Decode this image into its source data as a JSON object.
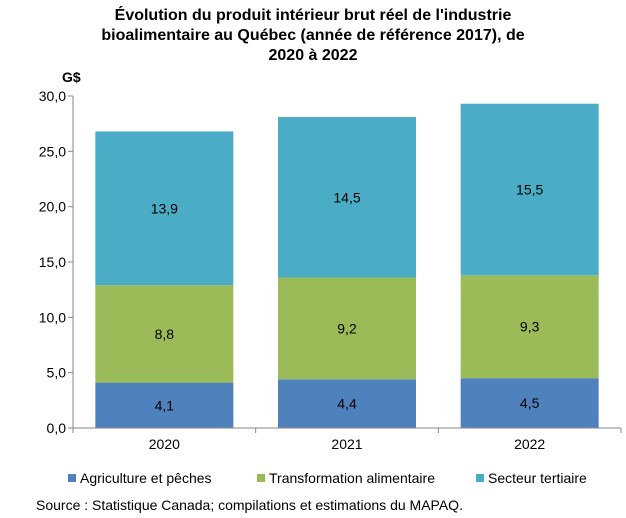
{
  "chart_data": {
    "type": "bar",
    "stacked": true,
    "title_lines": [
      "Évolution du produit intérieur brut réel de l'industrie",
      "bioalimentaire au Québec (année de référence 2017), de",
      "2020 à 2022"
    ],
    "ylabel": "G$",
    "ylim": [
      0,
      30
    ],
    "yticks": [
      "0,0",
      "5,0",
      "10,0",
      "15,0",
      "20,0",
      "25,0",
      "30,0"
    ],
    "categories": [
      "2020",
      "2021",
      "2022"
    ],
    "series": [
      {
        "name": "Agriculture et pêches",
        "color": "#4f81bd",
        "values": [
          4.1,
          4.4,
          4.5
        ],
        "labels": [
          "4,1",
          "4,4",
          "4,5"
        ]
      },
      {
        "name": "Transformation alimentaire",
        "color": "#9bbb59",
        "values": [
          8.8,
          9.2,
          9.3
        ],
        "labels": [
          "8,8",
          "9,2",
          "9,3"
        ]
      },
      {
        "name": "Secteur tertiaire",
        "color": "#4bacc6",
        "values": [
          13.9,
          14.5,
          15.5
        ],
        "labels": [
          "13,9",
          "14,5",
          "15,5"
        ]
      }
    ],
    "grid": false,
    "legend_position": "bottom",
    "source": "Source : Statistique Canada; compilations et estimations du MAPAQ."
  }
}
